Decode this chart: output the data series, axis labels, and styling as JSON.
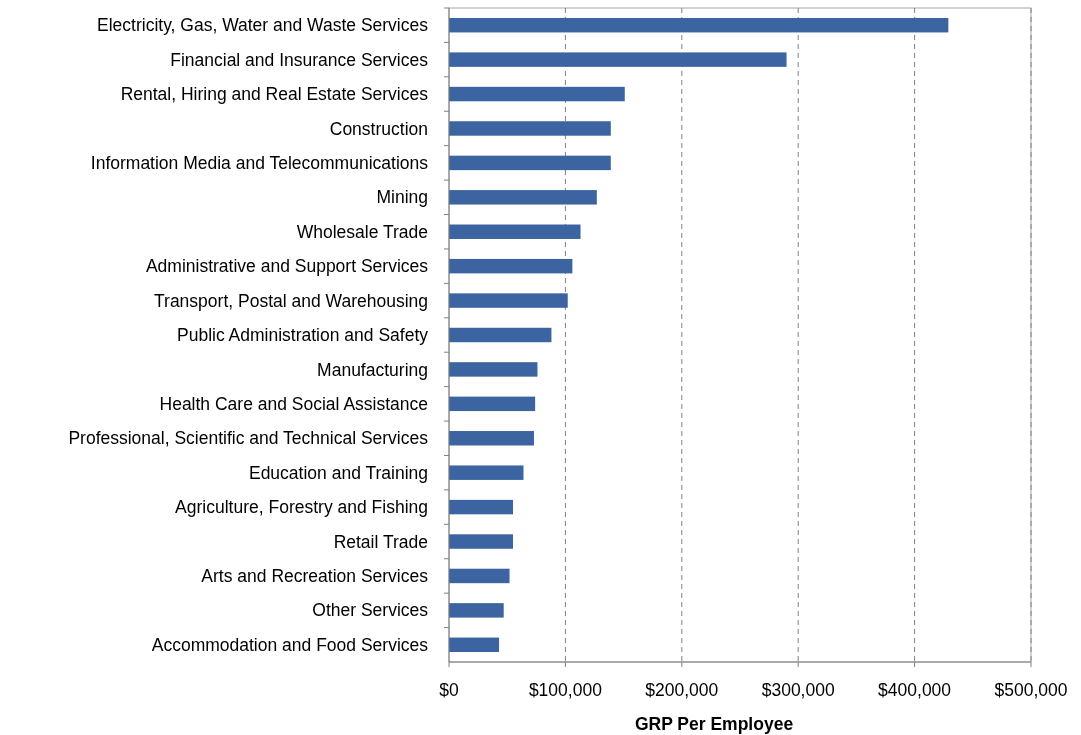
{
  "chart_data": {
    "type": "bar",
    "orientation": "horizontal",
    "xlabel": "GRP Per Employee",
    "categories": [
      "Electricity, Gas, Water and Waste Services",
      "Financial and Insurance Services",
      "Rental, Hiring and Real Estate Services",
      "Construction",
      "Information Media and Telecommunications",
      "Mining",
      "Wholesale Trade",
      "Administrative and Support Services",
      "Transport, Postal and Warehousing",
      "Public Administration and Safety",
      "Manufacturing",
      "Health Care and Social Assistance",
      "Professional, Scientific and Technical Services",
      "Education and Training",
      "Agriculture, Forestry and Fishing",
      "Retail Trade",
      "Arts and Recreation Services",
      "Other Services",
      "Accommodation and Food Services"
    ],
    "values": [
      429000,
      290000,
      151000,
      139000,
      139000,
      127000,
      113000,
      106000,
      102000,
      88000,
      76000,
      74000,
      73000,
      64000,
      55000,
      55000,
      52000,
      47000,
      43000
    ],
    "color": "#3b64a0",
    "xlim": [
      0,
      500000
    ],
    "xticks": [
      {
        "value": 0,
        "label": "$0"
      },
      {
        "value": 100000,
        "label": "$100,000"
      },
      {
        "value": 200000,
        "label": "$200,000"
      },
      {
        "value": 300000,
        "label": "$300,000"
      },
      {
        "value": 400000,
        "label": "$400,000"
      },
      {
        "value": 500000,
        "label": "$500,000"
      }
    ],
    "grid": "x"
  }
}
